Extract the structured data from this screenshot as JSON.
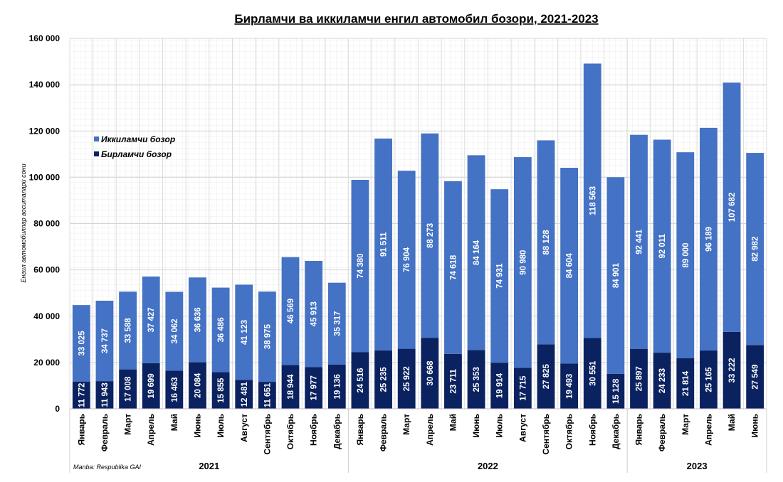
{
  "chart_data": {
    "type": "bar",
    "stacked": true,
    "title": "Бирламчи ва иккиламчи енгил автомобил бозори, 2021-2023",
    "xlabel": "",
    "ylabel": "Енгил автомобиллар воситалари сони",
    "ylim": [
      0,
      160000
    ],
    "yticks": [
      "0",
      "20 000",
      "40 000",
      "60 000",
      "80 000",
      "100 000",
      "120 000",
      "140 000",
      "160 000"
    ],
    "grid": true,
    "legend_position": "top-left",
    "source": "Manba: Respublika GAI",
    "groups": [
      {
        "label": "2021",
        "count": 12
      },
      {
        "label": "2022",
        "count": 12
      },
      {
        "label": "2023",
        "count": 6
      }
    ],
    "categories": [
      "Январь",
      "Февраль",
      "Март",
      "Апрель",
      "Май",
      "Июнь",
      "Июль",
      "Август",
      "Сентябрь",
      "Октябрь",
      "Ноябрь",
      "Декабрь",
      "Январь",
      "Февраль",
      "Март",
      "Апрель",
      "Май",
      "Июнь",
      "Июль",
      "Август",
      "Сентябрь",
      "Октябрь",
      "Ноябрь",
      "Декабрь",
      "Январь",
      "Февраль",
      "Март",
      "Апрель",
      "Май",
      "Июнь"
    ],
    "series": [
      {
        "name": "Бирламчи бозор",
        "color": "#0b2260",
        "values": [
          11772,
          11943,
          17008,
          19699,
          16463,
          20084,
          15855,
          12481,
          11651,
          18944,
          17977,
          19136,
          24516,
          25235,
          25922,
          30668,
          23711,
          25353,
          19914,
          17715,
          27825,
          19493,
          30551,
          15128,
          25897,
          24233,
          21814,
          25165,
          33222,
          27549
        ]
      },
      {
        "name": "Иккиламчи бозор",
        "color": "#4472c4",
        "values": [
          33025,
          34737,
          33588,
          37427,
          34062,
          36636,
          36486,
          41123,
          38975,
          46569,
          45913,
          35317,
          74380,
          91511,
          76904,
          88273,
          74618,
          84164,
          74931,
          90980,
          88128,
          84604,
          118563,
          84901,
          92441,
          92011,
          89000,
          96189,
          107682,
          82982
        ]
      }
    ]
  }
}
